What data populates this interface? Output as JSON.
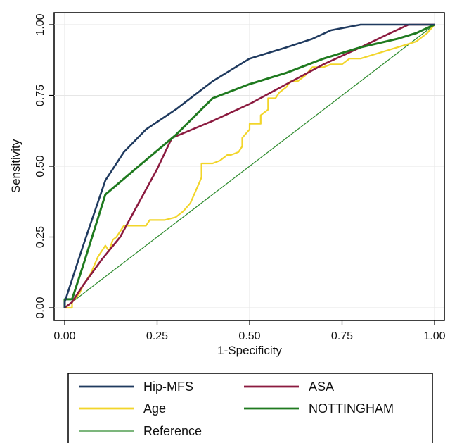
{
  "chart_data": {
    "type": "line",
    "title": "",
    "xlabel": "1-Specificity",
    "ylabel": "Sensitivity",
    "xlim": [
      0,
      1
    ],
    "ylim": [
      0,
      1
    ],
    "xticks": [
      "0.00",
      "0.25",
      "0.50",
      "0.75",
      "1.00"
    ],
    "yticks": [
      "0.00",
      "0.25",
      "0.50",
      "0.75",
      "1.00"
    ],
    "grid": true,
    "legend_position": "bottom",
    "series": [
      {
        "name": "Hip-MFS",
        "color": "#1f3a5f",
        "x": [
          0,
          0,
          0.02,
          0.05,
          0.11,
          0.16,
          0.22,
          0.3,
          0.4,
          0.5,
          0.6,
          0.67,
          0.72,
          0.8,
          0.85,
          0.9,
          1.0
        ],
        "y": [
          0,
          0.02,
          0.1,
          0.22,
          0.45,
          0.55,
          0.63,
          0.7,
          0.8,
          0.88,
          0.92,
          0.95,
          0.98,
          1.0,
          1.0,
          1.0,
          1.0
        ]
      },
      {
        "name": "ASA",
        "color": "#8b1a3f",
        "x": [
          0,
          0.02,
          0.05,
          0.1,
          0.15,
          0.2,
          0.25,
          0.29,
          0.4,
          0.5,
          0.6,
          0.7,
          0.8,
          0.88,
          0.93,
          1.0
        ],
        "y": [
          0,
          0.02,
          0.08,
          0.17,
          0.25,
          0.37,
          0.49,
          0.6,
          0.66,
          0.72,
          0.79,
          0.86,
          0.92,
          0.97,
          1.0,
          1.0
        ]
      },
      {
        "name": "Age",
        "color": "#f2d52a",
        "x": [
          0,
          0.02,
          0.02,
          0.04,
          0.05,
          0.07,
          0.08,
          0.09,
          0.1,
          0.11,
          0.12,
          0.13,
          0.14,
          0.15,
          0.16,
          0.2,
          0.22,
          0.23,
          0.25,
          0.27,
          0.3,
          0.31,
          0.32,
          0.34,
          0.35,
          0.36,
          0.37,
          0.37,
          0.4,
          0.42,
          0.44,
          0.45,
          0.47,
          0.48,
          0.48,
          0.5,
          0.5,
          0.53,
          0.53,
          0.55,
          0.55,
          0.57,
          0.58,
          0.6,
          0.61,
          0.63,
          0.65,
          0.67,
          0.7,
          0.72,
          0.75,
          0.77,
          0.8,
          0.85,
          0.9,
          0.95,
          0.98,
          1.0
        ],
        "y": [
          0,
          0,
          0.02,
          0.05,
          0.08,
          0.12,
          0.15,
          0.18,
          0.2,
          0.22,
          0.2,
          0.24,
          0.25,
          0.27,
          0.29,
          0.29,
          0.29,
          0.31,
          0.31,
          0.31,
          0.32,
          0.33,
          0.34,
          0.37,
          0.4,
          0.43,
          0.46,
          0.51,
          0.51,
          0.52,
          0.54,
          0.54,
          0.55,
          0.57,
          0.6,
          0.63,
          0.65,
          0.65,
          0.68,
          0.7,
          0.74,
          0.74,
          0.76,
          0.78,
          0.8,
          0.8,
          0.82,
          0.85,
          0.85,
          0.86,
          0.86,
          0.88,
          0.88,
          0.9,
          0.92,
          0.94,
          0.97,
          1.0
        ]
      },
      {
        "name": "NOTTINGHAM",
        "color": "#1f7a1f",
        "x": [
          0,
          0,
          0.02,
          0.05,
          0.11,
          0.2,
          0.3,
          0.4,
          0.5,
          0.6,
          0.7,
          0.8,
          0.9,
          0.95,
          1.0
        ],
        "y": [
          0,
          0.03,
          0.03,
          0.15,
          0.4,
          0.5,
          0.61,
          0.74,
          0.79,
          0.83,
          0.88,
          0.92,
          0.95,
          0.97,
          1.0
        ]
      },
      {
        "name": "Reference",
        "color": "#2e8b2e",
        "x": [
          0,
          1
        ],
        "y": [
          0,
          1
        ]
      }
    ]
  }
}
